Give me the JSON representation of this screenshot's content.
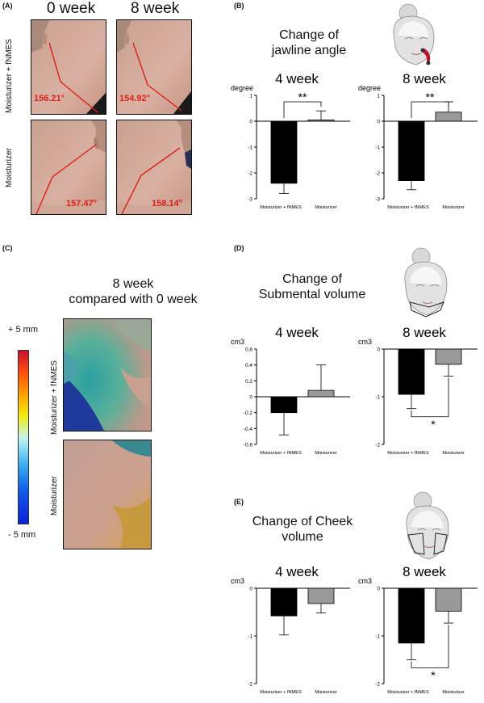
{
  "panelA": {
    "letter": "(A)",
    "week_headers": [
      "0 week",
      "8 week"
    ],
    "row_labels": [
      "Moisturizer + fNMES",
      "Moisturizer"
    ],
    "angles": [
      "156.21°",
      "154.92°",
      "157.47°",
      "158.14°"
    ]
  },
  "panelB": {
    "letter": "(B)",
    "title_line1": "Change of",
    "title_line2": "jawline angle",
    "icon": "face-jawline-icon"
  },
  "panelC": {
    "letter": "(C)",
    "title_line1": "8 week",
    "title_line2": "compared with 0 week",
    "scale_top": "+ 5 mm",
    "scale_bottom": "- 5 mm",
    "row_labels": [
      "Moisturizer + fNMES",
      "Moisturizer"
    ]
  },
  "panelD": {
    "letter": "(D)",
    "title_line1": "Change of",
    "title_line2": "Submental volume",
    "icon": "face-submental-icon"
  },
  "panelE": {
    "letter": "(E)",
    "title_line1": "Change of Cheek",
    "title_line2": "volume",
    "icon": "face-cheek-icon"
  },
  "colors": {
    "fnmes_bar": "#000000",
    "moisturizer_bar": "#999999",
    "angle_line": "#e0201a"
  },
  "chart_data": [
    {
      "id": "B4",
      "type": "bar",
      "title": "4 week",
      "ylabel": "degree",
      "ylim": [
        -3,
        1
      ],
      "yticks": [
        1,
        0,
        -1,
        -2,
        -3
      ],
      "categories": [
        "Moisturizer + fNMES",
        "Moisturizer"
      ],
      "values": [
        -2.4,
        0.05
      ],
      "errors": [
        0.4,
        0.35
      ],
      "annotation": "**",
      "annotation_type": "above"
    },
    {
      "id": "B8",
      "type": "bar",
      "title": "8 week",
      "ylabel": "degree",
      "ylim": [
        -3,
        1
      ],
      "yticks": [
        1,
        0,
        -1,
        -2,
        -3
      ],
      "categories": [
        "Moisturizer + fNMES",
        "Moisturizer"
      ],
      "values": [
        -2.3,
        0.35
      ],
      "errors": [
        0.35,
        0.4
      ],
      "annotation": "**",
      "annotation_type": "above"
    },
    {
      "id": "D4",
      "type": "bar",
      "title": "4 week",
      "ylabel": "cm3",
      "ylim": [
        -0.6,
        0.6
      ],
      "yticks": [
        0.6,
        0.4,
        0.2,
        0,
        -0.2,
        -0.4,
        -0.6
      ],
      "categories": [
        "Moisturizer + fNMES",
        "Moisturizer"
      ],
      "values": [
        -0.2,
        0.08
      ],
      "errors": [
        0.28,
        0.32
      ],
      "annotation": "",
      "annotation_type": "none"
    },
    {
      "id": "D8",
      "type": "bar",
      "title": "8 week",
      "ylabel": "cm3",
      "ylim": [
        -2,
        0
      ],
      "yticks": [
        0,
        -1,
        -2
      ],
      "categories": [
        "Moisturizer + fNMES",
        "Moisturizer"
      ],
      "values": [
        -0.95,
        -0.32
      ],
      "errors": [
        0.3,
        0.25
      ],
      "annotation": "*",
      "annotation_type": "below"
    },
    {
      "id": "E4",
      "type": "bar",
      "title": "4 week",
      "ylabel": "cm3",
      "ylim": [
        -2,
        0
      ],
      "yticks": [
        0,
        -1,
        -2
      ],
      "categories": [
        "Moisturizer + fNMES",
        "Moisturizer"
      ],
      "values": [
        -0.58,
        -0.32
      ],
      "errors": [
        0.4,
        0.2
      ],
      "annotation": "",
      "annotation_type": "none"
    },
    {
      "id": "E8",
      "type": "bar",
      "title": "8 week",
      "ylabel": "cm3",
      "ylim": [
        -2,
        0
      ],
      "yticks": [
        0,
        -1,
        -2
      ],
      "categories": [
        "Moisturizer + fNMES",
        "Moisturizer"
      ],
      "values": [
        -1.15,
        -0.48
      ],
      "errors": [
        0.35,
        0.25
      ],
      "annotation": "*",
      "annotation_type": "below"
    }
  ]
}
